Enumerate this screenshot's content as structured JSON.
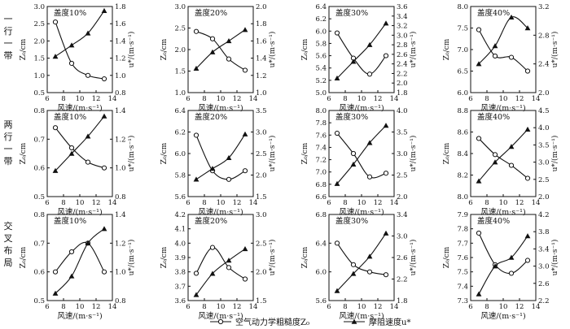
{
  "row_labels": [
    [
      "一",
      "行",
      "一",
      "带"
    ],
    [
      "两",
      "行",
      "一",
      "带"
    ],
    [
      "交",
      "叉",
      "布",
      "局"
    ]
  ],
  "legend": {
    "z0_label": "空气动力学粗糙度Z₀",
    "ustar_label": "摩阻速度u*"
  },
  "chart_data": [
    {
      "type": "line",
      "row": 0,
      "col": 0,
      "title": "盖度10%",
      "xlabel": "风速/(m·s⁻¹)",
      "ylabel_left": "Z₀/cm",
      "ylabel_right": "u*/(m·s⁻¹)",
      "xlim": [
        6,
        14
      ],
      "xticks": [
        "6",
        "8",
        "10",
        "12",
        "14"
      ],
      "ylim_left": [
        0.5,
        3.0
      ],
      "yticks_left": [
        "0.5",
        "1.0",
        "1.5",
        "2.0",
        "2.5",
        "3.0"
      ],
      "ylim_right": [
        0.8,
        1.8
      ],
      "yticks_right": [
        "0.8",
        "1.0",
        "1.2",
        "1.4",
        "1.6",
        "1.8"
      ],
      "x": [
        7,
        9,
        11,
        13
      ],
      "series": [
        {
          "axis": "left",
          "marker": "circle",
          "values": [
            2.55,
            1.35,
            1.0,
            0.9
          ]
        },
        {
          "axis": "right",
          "marker": "triangle",
          "values": [
            1.22,
            1.35,
            1.49,
            1.75
          ]
        }
      ]
    },
    {
      "type": "line",
      "row": 0,
      "col": 1,
      "title": "盖度20%",
      "xlabel": "风速/(m·s⁻¹)",
      "ylabel_left": "Z₀/cm",
      "ylabel_right": "u*/(m·s⁻¹)",
      "xlim": [
        6,
        14
      ],
      "xticks": [
        "6",
        "8",
        "10",
        "12",
        "14"
      ],
      "ylim_left": [
        1.0,
        3.0
      ],
      "yticks_left": [
        "1.0",
        "1.5",
        "2.0",
        "2.5",
        "3.0"
      ],
      "ylim_right": [
        1.0,
        2.0
      ],
      "yticks_right": [
        "1.0",
        "1.2",
        "1.4",
        "1.6",
        "1.8",
        "2.0"
      ],
      "x": [
        7,
        9,
        11,
        13
      ],
      "series": [
        {
          "axis": "left",
          "marker": "circle",
          "values": [
            2.42,
            2.25,
            1.78,
            1.52
          ]
        },
        {
          "axis": "right",
          "marker": "triangle",
          "values": [
            1.28,
            1.47,
            1.6,
            1.73
          ]
        }
      ]
    },
    {
      "type": "line",
      "row": 0,
      "col": 2,
      "title": "盖度30%",
      "xlabel": "风速/(m·s⁻¹)",
      "ylabel_left": "Z₀/cm",
      "ylabel_right": "u*/(m·s⁻¹)",
      "xlim": [
        6,
        14
      ],
      "xticks": [
        "6",
        "8",
        "10",
        "12",
        "14"
      ],
      "ylim_left": [
        5.0,
        6.4
      ],
      "yticks_left": [
        "5.0",
        "5.2",
        "5.4",
        "5.6",
        "5.8",
        "6.0",
        "6.2",
        "6.4"
      ],
      "ylim_right": [
        1.8,
        3.6
      ],
      "yticks_right": [
        "1.8",
        "2.0",
        "2.2",
        "2.4",
        "2.6",
        "2.8",
        "3.0",
        "3.2",
        "3.4",
        "3.6"
      ],
      "x": [
        7,
        9,
        11,
        13
      ],
      "series": [
        {
          "axis": "left",
          "marker": "circle",
          "values": [
            5.97,
            5.56,
            5.3,
            5.6
          ]
        },
        {
          "axis": "right",
          "marker": "triangle",
          "values": [
            2.1,
            2.45,
            2.8,
            3.25
          ]
        }
      ]
    },
    {
      "type": "line",
      "row": 0,
      "col": 3,
      "title": "盖度40%",
      "xlabel": "风速/(m·s⁻¹)",
      "ylabel_left": "Z₀/cm",
      "ylabel_right": "u*/(m·s⁻¹)",
      "xlim": [
        6,
        14
      ],
      "xticks": [
        "6",
        "8",
        "10",
        "12",
        "14"
      ],
      "ylim_left": [
        6.0,
        8.0
      ],
      "yticks_left": [
        "6.0",
        "6.5",
        "7.0",
        "7.5",
        "8.0"
      ],
      "ylim_right": [
        2.0,
        3.2
      ],
      "yticks_right": [
        "2.0",
        "2.4",
        "2.8",
        "3.2"
      ],
      "x": [
        7,
        9,
        11,
        13
      ],
      "series": [
        {
          "axis": "left",
          "marker": "circle",
          "values": [
            7.46,
            6.85,
            6.82,
            6.5
          ]
        },
        {
          "axis": "right",
          "marker": "triangle",
          "values": [
            2.4,
            2.65,
            3.05,
            2.9
          ]
        }
      ]
    },
    {
      "type": "line",
      "row": 1,
      "col": 0,
      "title": "盖度10%",
      "xlabel": "风速/(m·s⁻¹)",
      "ylabel_left": "Z₀/cm",
      "ylabel_right": "u*/(m·s⁻¹)",
      "xlim": [
        6,
        14
      ],
      "xticks": [
        "6",
        "8",
        "10",
        "12",
        "14"
      ],
      "ylim_left": [
        0.5,
        0.8
      ],
      "yticks_left": [
        "0.5",
        "0.6",
        "0.7",
        "0.8"
      ],
      "ylim_right": [
        0.8,
        1.4
      ],
      "yticks_right": [
        "0.8",
        "1.0",
        "1.2",
        "1.4"
      ],
      "x": [
        7,
        9,
        11,
        13
      ],
      "series": [
        {
          "axis": "left",
          "marker": "circle",
          "values": [
            0.74,
            0.67,
            0.62,
            0.6
          ]
        },
        {
          "axis": "right",
          "marker": "triangle",
          "values": [
            0.98,
            1.1,
            1.22,
            1.36
          ]
        }
      ]
    },
    {
      "type": "line",
      "row": 1,
      "col": 1,
      "title": "盖度20%",
      "xlabel": "风速/(m·s⁻¹)",
      "ylabel_left": "Z₀/cm",
      "ylabel_right": "u*/(m·s⁻¹)",
      "xlim": [
        6,
        14
      ],
      "xticks": [
        "6",
        "8",
        "10",
        "12",
        "14"
      ],
      "ylim_left": [
        5.6,
        6.4
      ],
      "yticks_left": [
        "5.6",
        "5.8",
        "6.0",
        "6.2",
        "6.4"
      ],
      "ylim_right": [
        1.5,
        3.5
      ],
      "yticks_right": [
        "1.5",
        "2.0",
        "2.5",
        "3.0",
        "3.5"
      ],
      "x": [
        7,
        9,
        11,
        13
      ],
      "series": [
        {
          "axis": "left",
          "marker": "circle",
          "values": [
            6.17,
            5.84,
            5.76,
            5.84
          ]
        },
        {
          "axis": "right",
          "marker": "triangle",
          "values": [
            1.9,
            2.15,
            2.4,
            2.95
          ]
        }
      ]
    },
    {
      "type": "line",
      "row": 1,
      "col": 2,
      "title": "盖度30%",
      "xlabel": "风速/(m·s⁻¹)",
      "ylabel_left": "Z₀/cm",
      "ylabel_right": "u*/(m·s⁻¹)",
      "xlim": [
        6,
        14
      ],
      "xticks": [
        "6",
        "8",
        "10",
        "12",
        "14"
      ],
      "ylim_left": [
        6.6,
        8.0
      ],
      "yticks_left": [
        "6.6",
        "6.8",
        "7.0",
        "7.2",
        "7.4",
        "7.6",
        "7.8",
        "8.0"
      ],
      "ylim_right": [
        2.0,
        4.0
      ],
      "yticks_right": [
        "2.0",
        "2.5",
        "3.0",
        "3.5",
        "4.0"
      ],
      "x": [
        7,
        9,
        11,
        13
      ],
      "series": [
        {
          "axis": "left",
          "marker": "circle",
          "values": [
            7.63,
            7.3,
            6.92,
            6.98
          ]
        },
        {
          "axis": "right",
          "marker": "triangle",
          "values": [
            2.3,
            2.75,
            3.25,
            3.65
          ]
        }
      ]
    },
    {
      "type": "line",
      "row": 1,
      "col": 3,
      "title": "盖度40%",
      "xlabel": "风速/(m·s⁻¹)",
      "ylabel_left": "Z₀/cm",
      "ylabel_right": "u*/(m·s⁻¹)",
      "xlim": [
        6,
        14
      ],
      "xticks": [
        "6",
        "8",
        "10",
        "12",
        "14"
      ],
      "ylim_left": [
        8.0,
        8.8
      ],
      "yticks_left": [
        "8.0",
        "8.2",
        "8.4",
        "8.6",
        "8.8"
      ],
      "ylim_right": [
        2.0,
        4.5
      ],
      "yticks_right": [
        "2.0",
        "2.5",
        "3.0",
        "3.5",
        "4.0",
        "4.5"
      ],
      "x": [
        7,
        9,
        11,
        13
      ],
      "series": [
        {
          "axis": "left",
          "marker": "circle",
          "values": [
            8.54,
            8.39,
            8.29,
            8.17
          ]
        },
        {
          "axis": "right",
          "marker": "triangle",
          "values": [
            2.45,
            3.0,
            3.45,
            3.95
          ]
        }
      ]
    },
    {
      "type": "line",
      "row": 2,
      "col": 0,
      "title": "盖度10%",
      "xlabel": "风速/(m·s⁻¹)",
      "ylabel_left": "Z₀/cm",
      "ylabel_right": "u*/(m·s⁻¹)",
      "xlim": [
        6,
        14
      ],
      "xticks": [
        "6",
        "8",
        "10",
        "12",
        "14"
      ],
      "ylim_left": [
        0.5,
        0.8
      ],
      "yticks_left": [
        "0.5",
        "0.6",
        "0.7",
        "0.8"
      ],
      "ylim_right": [
        0.8,
        1.4
      ],
      "yticks_right": [
        "0.8",
        "1.0",
        "1.2",
        "1.4"
      ],
      "x": [
        7,
        9,
        11,
        13
      ],
      "series": [
        {
          "axis": "left",
          "marker": "circle",
          "values": [
            0.6,
            0.67,
            0.7,
            0.6
          ]
        },
        {
          "axis": "right",
          "marker": "triangle",
          "values": [
            0.85,
            0.97,
            1.2,
            1.3
          ]
        }
      ]
    },
    {
      "type": "line",
      "row": 2,
      "col": 1,
      "title": "盖度20%",
      "xlabel": "风速/(m·s⁻¹)",
      "ylabel_left": "Z₀/cm",
      "ylabel_right": "u*/(m·s⁻¹)",
      "xlim": [
        6,
        14
      ],
      "xticks": [
        "6",
        "8",
        "10",
        "12",
        "14"
      ],
      "ylim_left": [
        3.6,
        4.2
      ],
      "yticks_left": [
        "3.6",
        "3.7",
        "3.8",
        "3.9",
        "4.0",
        "4.1",
        "4.2"
      ],
      "ylim_right": [
        1.5,
        3.0
      ],
      "yticks_right": [
        "1.5",
        "2.0",
        "2.5",
        "3.0"
      ],
      "x": [
        7,
        9,
        11,
        13
      ],
      "series": [
        {
          "axis": "left",
          "marker": "circle",
          "values": [
            3.79,
            3.97,
            3.83,
            3.75
          ]
        },
        {
          "axis": "right",
          "marker": "triangle",
          "values": [
            1.6,
            1.97,
            2.2,
            2.4
          ]
        }
      ]
    },
    {
      "type": "line",
      "row": 2,
      "col": 2,
      "title": "盖度30%",
      "xlabel": "风速/(m·s⁻¹)",
      "ylabel_left": "Z₀/cm",
      "ylabel_right": "u*/(m·s⁻¹)",
      "xlim": [
        6,
        14
      ],
      "xticks": [
        "6",
        "8",
        "10",
        "12",
        "14"
      ],
      "ylim_left": [
        5.6,
        6.8
      ],
      "yticks_left": [
        "5.6",
        "6.0",
        "6.4",
        "6.8"
      ],
      "ylim_right": [
        1.8,
        3.4
      ],
      "yticks_right": [
        "1.8",
        "2.2",
        "2.6",
        "3.0",
        "3.4"
      ],
      "x": [
        7,
        9,
        11,
        13
      ],
      "series": [
        {
          "axis": "left",
          "marker": "circle",
          "values": [
            6.4,
            6.1,
            6.0,
            5.96
          ]
        },
        {
          "axis": "right",
          "marker": "triangle",
          "values": [
            1.98,
            2.3,
            2.62,
            3.05
          ]
        }
      ]
    },
    {
      "type": "line",
      "row": 2,
      "col": 3,
      "title": "盖度40%",
      "xlabel": "风速/(m·s⁻¹)",
      "ylabel_left": "Z₀/cm",
      "ylabel_right": "u*/(m·s⁻¹)",
      "xlim": [
        6,
        14
      ],
      "xticks": [
        "6",
        "8",
        "10",
        "12",
        "14"
      ],
      "ylim_left": [
        7.3,
        7.9
      ],
      "yticks_left": [
        "7.3",
        "7.4",
        "7.5",
        "7.6",
        "7.7",
        "7.8",
        "7.9"
      ],
      "ylim_right": [
        2.2,
        4.2
      ],
      "yticks_right": [
        "2.2",
        "2.6",
        "3.0",
        "3.4",
        "3.8",
        "4.2"
      ],
      "x": [
        7,
        9,
        11,
        13
      ],
      "series": [
        {
          "axis": "left",
          "marker": "circle",
          "values": [
            7.77,
            7.55,
            7.49,
            7.58
          ]
        },
        {
          "axis": "right",
          "marker": "triangle",
          "values": [
            2.35,
            3.0,
            3.2,
            3.7
          ]
        }
      ]
    }
  ]
}
